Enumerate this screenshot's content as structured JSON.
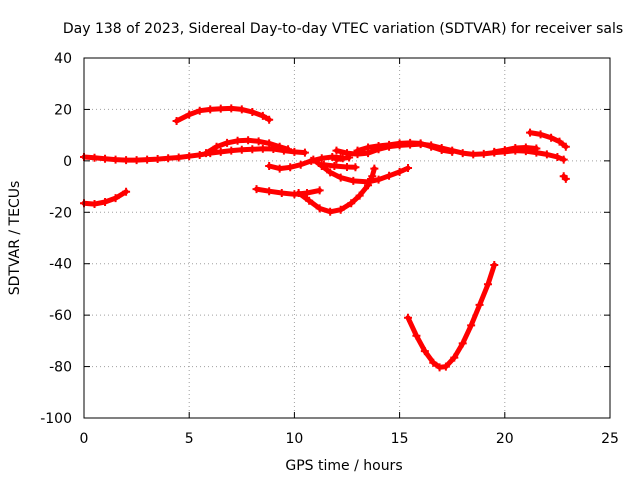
{
  "chart_data": {
    "type": "scatter",
    "title": "Day 138 of 2023, Sidereal Day-to-day VTEC variation (SDTVAR) for receiver sals",
    "xlabel": "GPS time / hours",
    "ylabel": "SDTVAR / TECUs",
    "xlim": [
      0,
      25
    ],
    "ylim": [
      -100,
      40
    ],
    "xticks": [
      0,
      5,
      10,
      15,
      20,
      25
    ],
    "yticks": [
      -100,
      -80,
      -60,
      -40,
      -20,
      0,
      20,
      40
    ],
    "grid": true,
    "marker": "plus",
    "series": [
      {
        "color": "#ff0000",
        "points": [
          [
            0.0,
            1.5
          ],
          [
            0.5,
            1.2
          ],
          [
            1.0,
            0.8
          ],
          [
            1.5,
            0.5
          ],
          [
            2.0,
            0.3
          ],
          [
            2.5,
            0.3
          ],
          [
            3.0,
            0.5
          ],
          [
            3.5,
            0.7
          ],
          [
            4.0,
            1.0
          ],
          [
            4.5,
            1.3
          ],
          [
            5.0,
            1.8
          ],
          [
            5.5,
            2.3
          ],
          [
            6.0,
            3.0
          ],
          [
            6.5,
            3.5
          ],
          [
            7.0,
            4.0
          ],
          [
            7.5,
            4.3
          ],
          [
            8.0,
            4.5
          ],
          [
            8.5,
            4.7
          ],
          [
            9.0,
            4.6
          ],
          [
            9.5,
            4.0
          ],
          [
            10.0,
            3.5
          ],
          [
            10.5,
            3.2
          ]
        ]
      },
      {
        "color": "#ff0000",
        "points": [
          [
            0.0,
            -16.5
          ],
          [
            0.5,
            -16.8
          ],
          [
            1.0,
            -16.0
          ],
          [
            1.5,
            -14.5
          ],
          [
            2.0,
            -12.0
          ]
        ]
      },
      {
        "color": "#ff0000",
        "points": [
          [
            4.4,
            15.5
          ],
          [
            5.0,
            18.0
          ],
          [
            5.5,
            19.5
          ],
          [
            6.0,
            20.0
          ],
          [
            6.5,
            20.3
          ],
          [
            7.0,
            20.4
          ],
          [
            7.5,
            20.0
          ],
          [
            8.0,
            19.0
          ],
          [
            8.5,
            17.5
          ],
          [
            8.8,
            16.0
          ]
        ]
      },
      {
        "color": "#ff0000",
        "points": [
          [
            5.8,
            3.0
          ],
          [
            6.3,
            5.5
          ],
          [
            6.8,
            7.0
          ],
          [
            7.3,
            7.8
          ],
          [
            7.8,
            8.0
          ],
          [
            8.3,
            7.6
          ],
          [
            8.8,
            6.8
          ],
          [
            9.3,
            5.5
          ],
          [
            9.7,
            4.5
          ]
        ]
      },
      {
        "color": "#ff0000",
        "points": [
          [
            8.2,
            -11.0
          ],
          [
            8.8,
            -11.8
          ],
          [
            9.4,
            -12.5
          ],
          [
            10.0,
            -13.0
          ],
          [
            10.6,
            -12.5
          ],
          [
            11.2,
            -11.5
          ]
        ]
      },
      {
        "color": "#ff0000",
        "points": [
          [
            8.8,
            -2.0
          ],
          [
            9.3,
            -3.0
          ],
          [
            9.8,
            -2.5
          ],
          [
            10.3,
            -1.5
          ],
          [
            10.8,
            0.0
          ],
          [
            11.3,
            1.0
          ],
          [
            11.8,
            1.5
          ],
          [
            12.2,
            1.2
          ]
        ]
      },
      {
        "color": "#ff0000",
        "points": [
          [
            10.2,
            -12.5
          ],
          [
            10.7,
            -15.5
          ],
          [
            11.2,
            -18.5
          ],
          [
            11.7,
            -19.8
          ],
          [
            12.2,
            -19.0
          ],
          [
            12.7,
            -16.5
          ],
          [
            13.1,
            -13.5
          ],
          [
            13.5,
            -9.5
          ],
          [
            13.7,
            -6.0
          ],
          [
            13.8,
            -3.0
          ]
        ]
      },
      {
        "color": "#ff0000",
        "points": [
          [
            10.9,
            0.5
          ],
          [
            11.3,
            -2.0
          ],
          [
            11.7,
            -4.5
          ],
          [
            12.2,
            -6.5
          ],
          [
            12.8,
            -7.8
          ],
          [
            13.5,
            -8.2
          ],
          [
            14.0,
            -7.3
          ],
          [
            14.5,
            -5.8
          ],
          [
            15.0,
            -4.3
          ],
          [
            15.4,
            -2.8
          ]
        ]
      },
      {
        "color": "#ff0000",
        "points": [
          [
            11.4,
            -1.5
          ],
          [
            11.9,
            -2.0
          ],
          [
            12.5,
            -2.4
          ],
          [
            12.9,
            -2.5
          ]
        ]
      },
      {
        "color": "#ff0000",
        "points": [
          [
            12.0,
            0.5
          ],
          [
            12.3,
            1.0
          ],
          [
            12.6,
            1.3
          ]
        ]
      },
      {
        "color": "#ff0000",
        "points": [
          [
            12.0,
            4.0
          ],
          [
            12.5,
            3.0
          ],
          [
            13.0,
            2.6
          ],
          [
            13.5,
            3.0
          ],
          [
            14.0,
            4.5
          ],
          [
            14.5,
            5.5
          ],
          [
            15.0,
            6.0
          ],
          [
            15.5,
            6.3
          ],
          [
            16.0,
            6.5
          ],
          [
            16.5,
            6.0
          ],
          [
            17.0,
            5.0
          ],
          [
            17.5,
            4.0
          ],
          [
            18.0,
            3.0
          ],
          [
            18.5,
            2.5
          ],
          [
            19.0,
            2.7
          ],
          [
            19.5,
            3.2
          ],
          [
            20.0,
            3.5
          ],
          [
            20.5,
            4.0
          ],
          [
            21.0,
            3.8
          ],
          [
            21.5,
            3.2
          ],
          [
            22.0,
            2.5
          ],
          [
            22.5,
            1.5
          ],
          [
            22.8,
            0.5
          ]
        ]
      },
      {
        "color": "#ff0000",
        "points": [
          [
            13.0,
            4.0
          ],
          [
            13.5,
            5.2
          ],
          [
            14.0,
            5.8
          ],
          [
            14.5,
            6.2
          ],
          [
            15.0,
            6.8
          ],
          [
            15.5,
            7.0
          ],
          [
            16.0,
            6.8
          ],
          [
            16.5,
            5.5
          ],
          [
            17.0,
            4.2
          ],
          [
            17.5,
            3.5
          ]
        ]
      },
      {
        "color": "#ff0000",
        "points": [
          [
            15.4,
            -61.0
          ],
          [
            15.8,
            -68.0
          ],
          [
            16.2,
            -74.0
          ],
          [
            16.6,
            -78.5
          ],
          [
            16.9,
            -80.3
          ],
          [
            17.2,
            -80.0
          ],
          [
            17.6,
            -76.5
          ],
          [
            18.0,
            -71.0
          ],
          [
            18.4,
            -64.0
          ],
          [
            18.8,
            -56.0
          ],
          [
            19.2,
            -48.0
          ],
          [
            19.5,
            -40.5
          ]
        ]
      },
      {
        "color": "#ff0000",
        "points": [
          [
            19.5,
            3.5
          ],
          [
            20.0,
            4.2
          ],
          [
            20.5,
            5.0
          ],
          [
            21.0,
            5.2
          ],
          [
            21.5,
            4.8
          ]
        ]
      },
      {
        "color": "#ff0000",
        "points": [
          [
            21.2,
            11.0
          ],
          [
            21.7,
            10.3
          ],
          [
            22.2,
            9.0
          ],
          [
            22.6,
            7.5
          ],
          [
            22.9,
            5.5
          ]
        ]
      },
      {
        "color": "#ff0000",
        "points": [
          [
            22.8,
            -6.0
          ],
          [
            22.9,
            -7.0
          ]
        ]
      }
    ]
  }
}
